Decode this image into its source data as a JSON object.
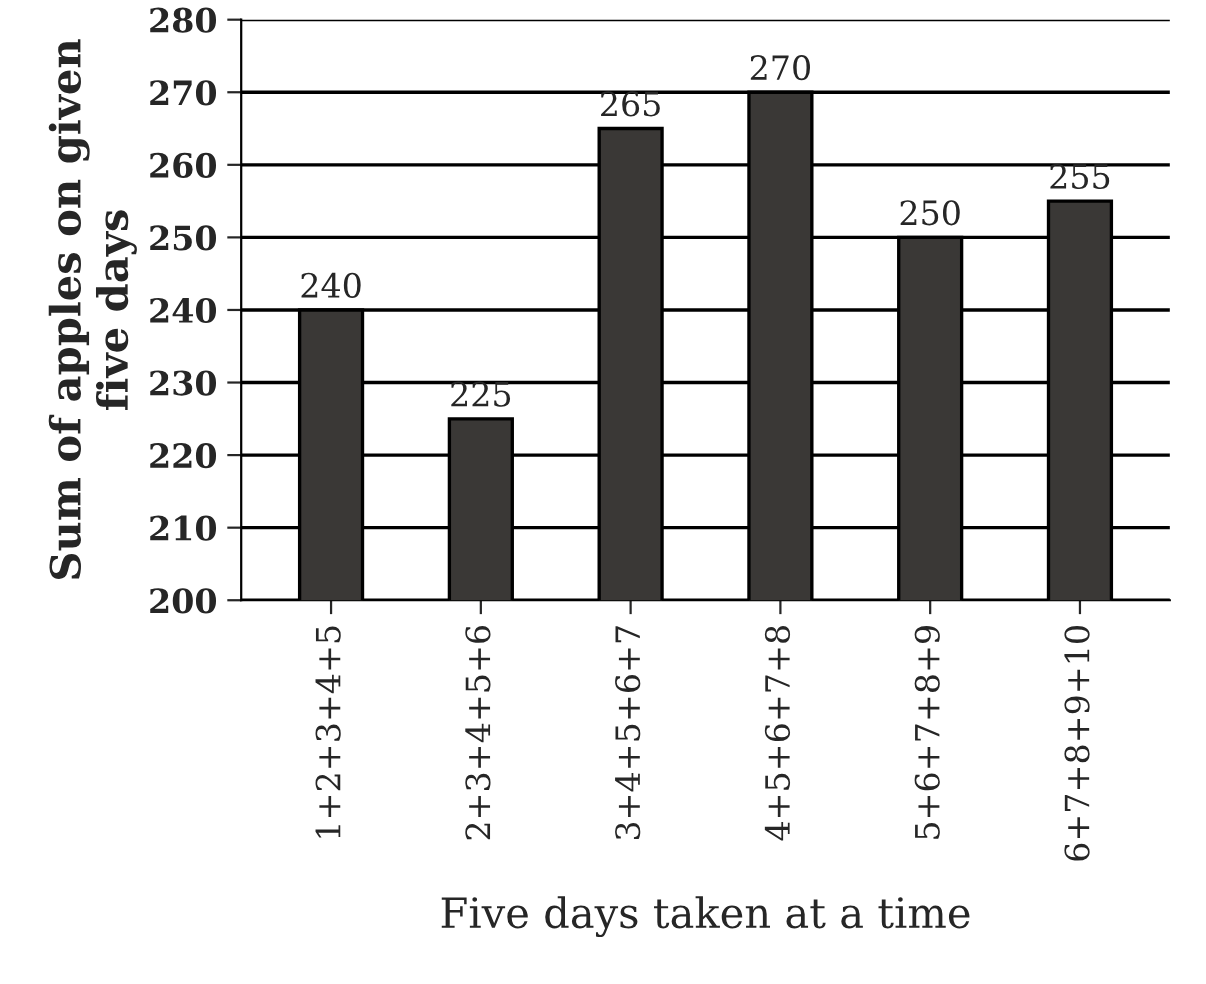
{
  "chart_data": {
    "type": "bar",
    "xlabel": "Five days taken at a time",
    "ylabel": "Sum of apples on given\nfive days",
    "categories": [
      "1+2+3+4+5",
      "2+3+4+5+6",
      "3+4+5+6+7",
      "4+5+6+7+8",
      "5+6+7+8+9",
      "6+7+8+9+10"
    ],
    "values": [
      240,
      225,
      265,
      270,
      250,
      255
    ],
    "color": "#3a3836",
    "data_labels": true,
    "ylim": [
      200,
      280
    ],
    "yticks": [
      200,
      210,
      220,
      230,
      240,
      250,
      260,
      270,
      280
    ],
    "grid": "y"
  }
}
